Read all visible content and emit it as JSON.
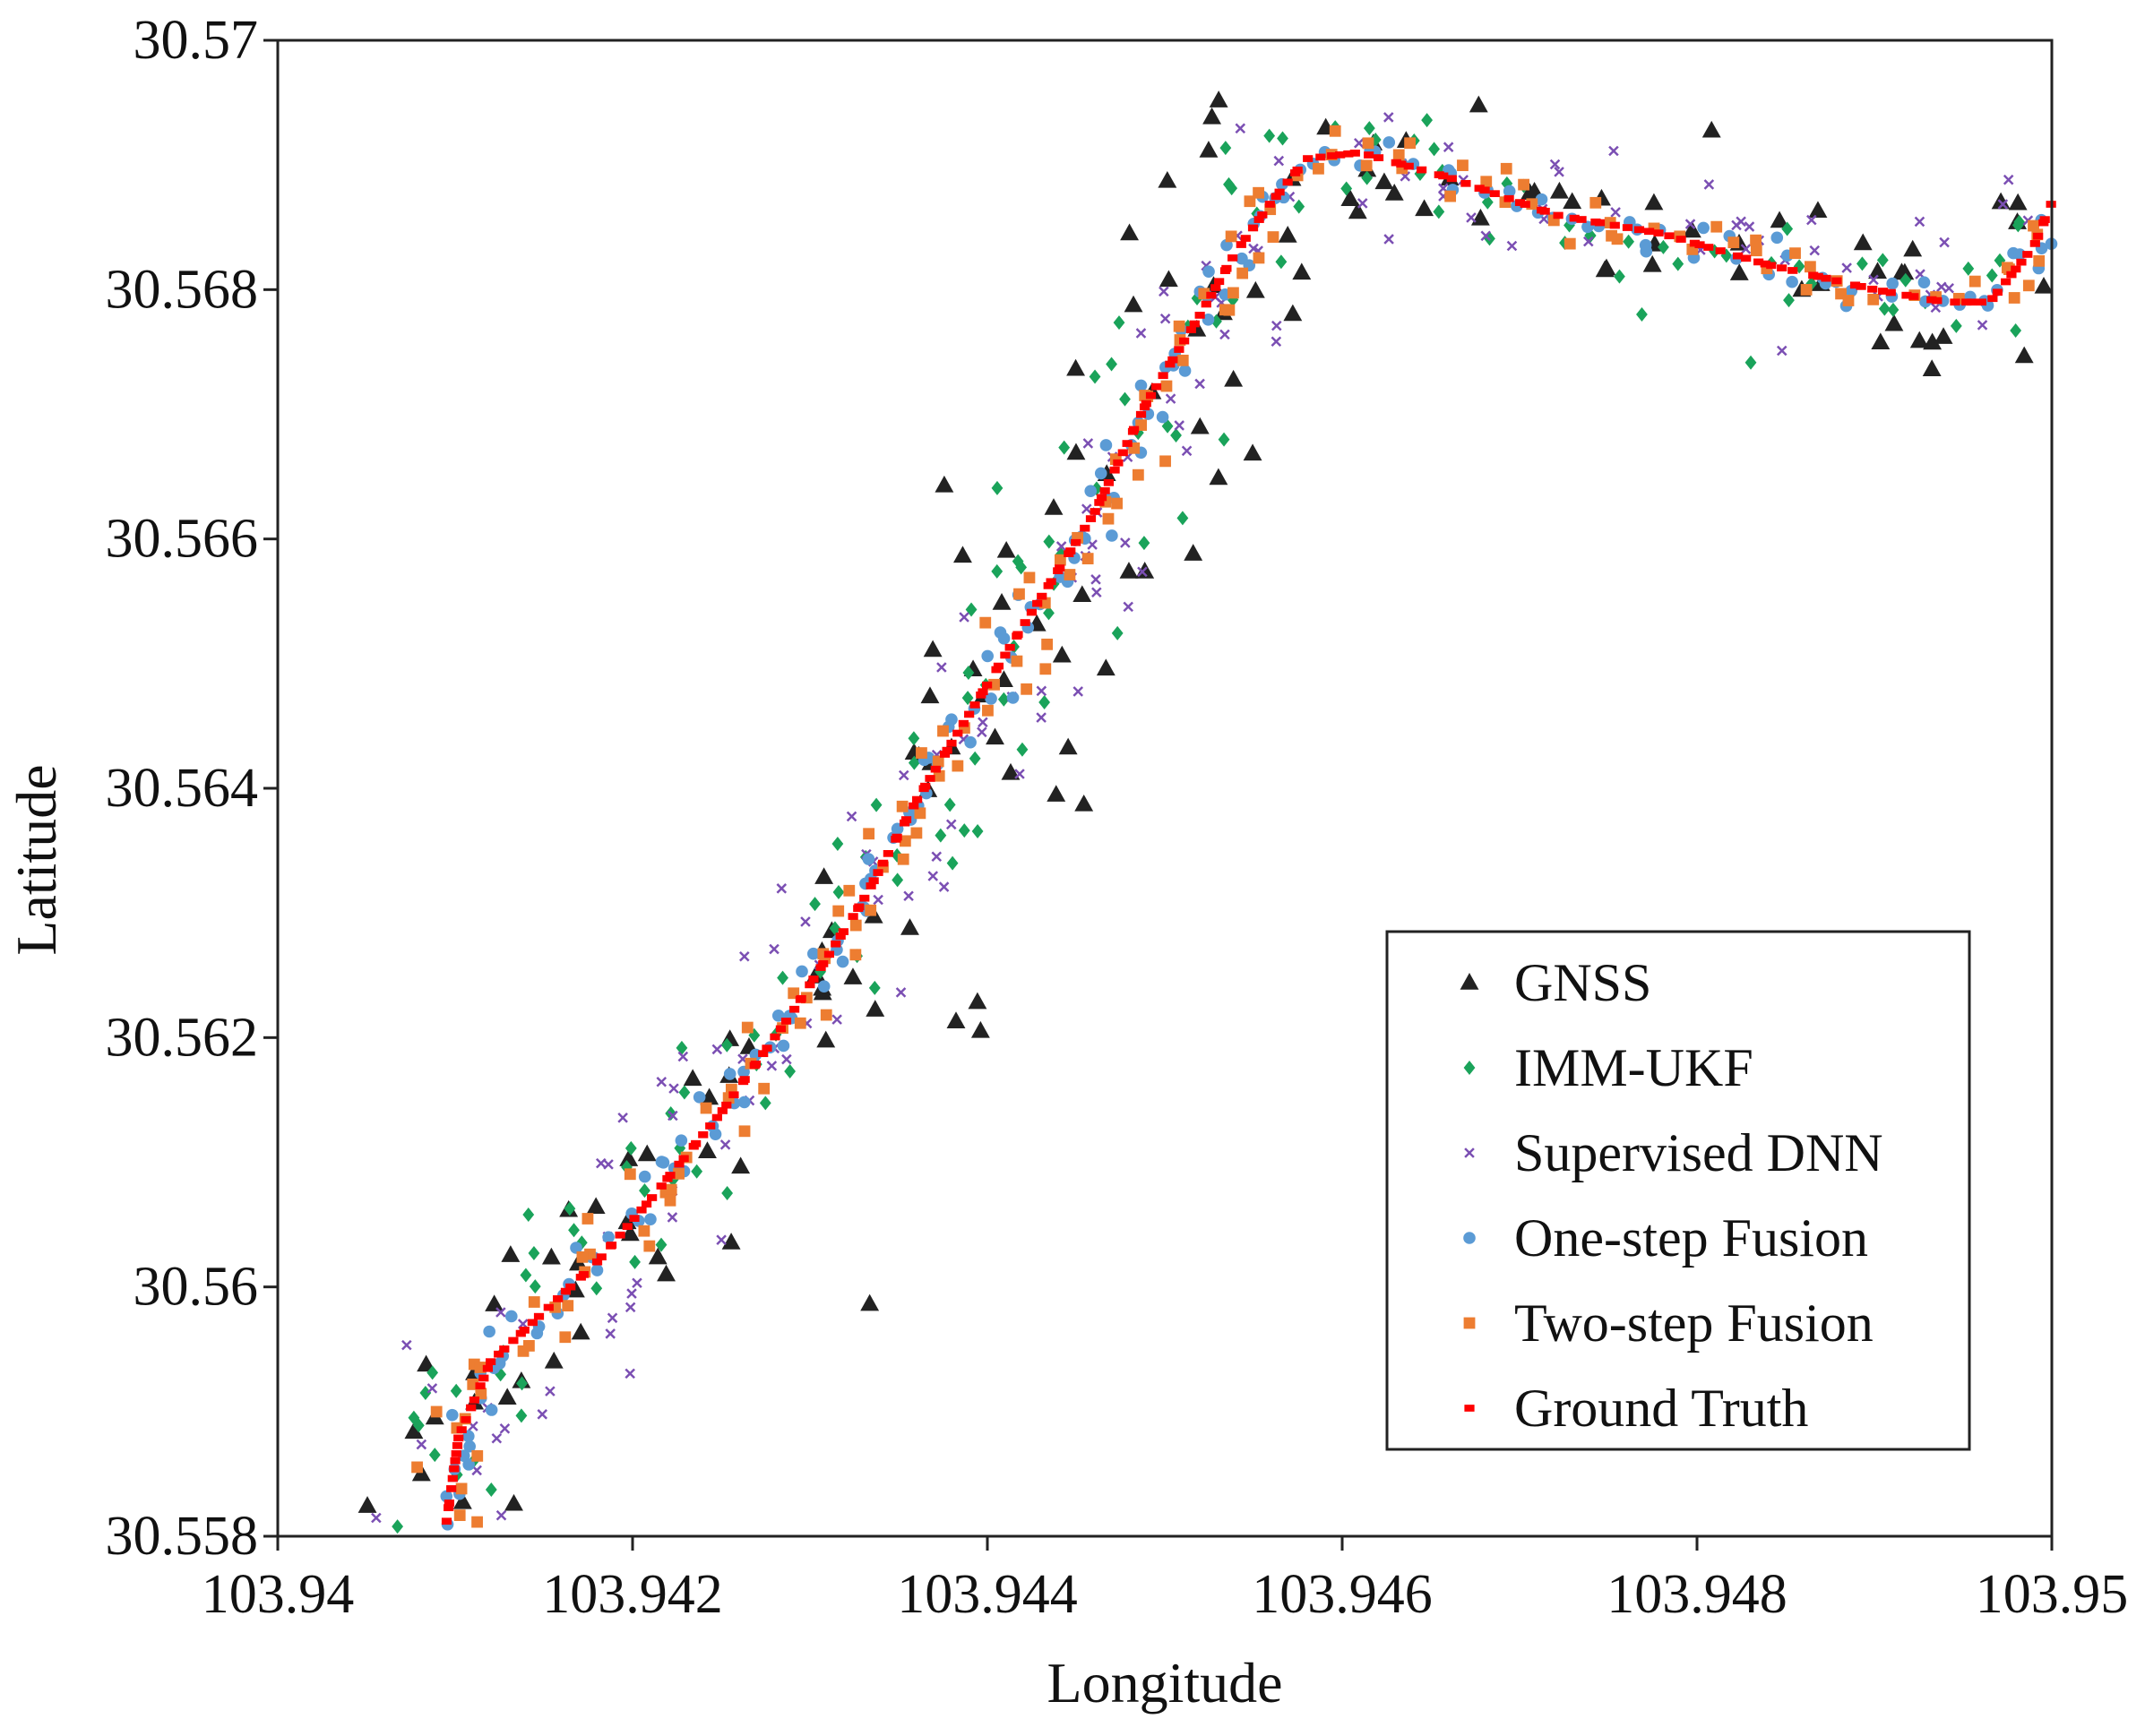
{
  "chart_data": {
    "type": "scatter",
    "title": "",
    "xlabel": "Longitude",
    "ylabel": "Latitude",
    "xlim": [
      103.94,
      103.95
    ],
    "ylim": [
      30.558,
      30.57
    ],
    "x_ticks": [
      103.94,
      103.942,
      103.944,
      103.946,
      103.948,
      103.95
    ],
    "x_tick_labels": [
      "103.94",
      "103.942",
      "103.944",
      "103.946",
      "103.948",
      "103.95"
    ],
    "y_ticks": [
      30.558,
      30.56,
      30.562,
      30.564,
      30.566,
      30.568,
      30.57
    ],
    "y_tick_labels": [
      "30.558",
      "30.56",
      "30.562",
      "30.564",
      "30.566",
      "30.568",
      "30.57"
    ],
    "grid": false,
    "legend_position": "lower-right",
    "ground_truth_path": [
      [
        103.94095,
        30.5581
      ],
      [
        103.94102,
        30.5588
      ],
      [
        103.9412,
        30.5594
      ],
      [
        103.9415,
        30.5598
      ],
      [
        103.9418,
        30.5602
      ],
      [
        103.9421,
        30.5607
      ],
      [
        103.9425,
        30.5614
      ],
      [
        103.9429,
        30.5622
      ],
      [
        103.9433,
        30.5631
      ],
      [
        103.9436,
        30.5639
      ],
      [
        103.9439,
        30.5646
      ],
      [
        103.9442,
        30.5653
      ],
      [
        103.9446,
        30.5662
      ],
      [
        103.9449,
        30.5671
      ],
      [
        103.9452,
        30.5678
      ],
      [
        103.9454,
        30.5683
      ],
      [
        103.9456,
        30.5687
      ],
      [
        103.9458,
        30.56905
      ],
      [
        103.9461,
        30.5691
      ],
      [
        103.9466,
        30.5689
      ],
      [
        103.9472,
        30.5686
      ],
      [
        103.9478,
        30.56845
      ],
      [
        103.9484,
        30.5682
      ],
      [
        103.949,
        30.568
      ],
      [
        103.9494,
        30.5679
      ],
      [
        103.94965,
        30.5679
      ],
      [
        103.9499,
        30.56835
      ],
      [
        103.95,
        30.5687
      ]
    ],
    "series": [
      {
        "name": "GNSS",
        "marker": "triangle",
        "color": "#222222",
        "noise": 0.0004,
        "count": 150,
        "seed": 11
      },
      {
        "name": "IMM-UKF",
        "marker": "diamond",
        "color": "#1aa35a",
        "noise": 0.00024,
        "count": 150,
        "seed": 23
      },
      {
        "name": "Supervised DNN",
        "marker": "cross",
        "color": "#7b4fb3",
        "noise": 0.0003,
        "count": 150,
        "seed": 37
      },
      {
        "name": "One-step Fusion",
        "marker": "circle",
        "color": "#5b9bd5",
        "noise": 8e-05,
        "count": 180,
        "seed": 41
      },
      {
        "name": "Two-step Fusion",
        "marker": "square",
        "color": "#ed7d31",
        "noise": 0.00011,
        "count": 150,
        "seed": 53
      },
      {
        "name": "Ground Truth",
        "marker": "dash",
        "color": "#ff0000",
        "noise": 0.0,
        "count": 240,
        "seed": 67
      }
    ]
  }
}
